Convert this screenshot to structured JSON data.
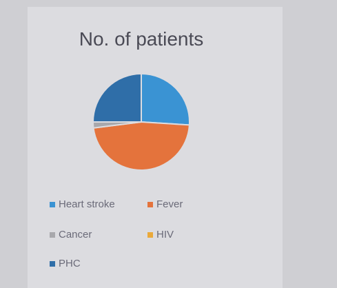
{
  "chart_data": {
    "type": "pie",
    "title": "No. of patients",
    "categories": [
      "Heart stroke",
      "Fever",
      "Cancer",
      "HIV",
      "PHC"
    ],
    "values": [
      26,
      47,
      2,
      0,
      25
    ],
    "colors": [
      "#3a93d3",
      "#e4733c",
      "#a8a8ac",
      "#eaa93a",
      "#2f6ea8"
    ],
    "legend": "bottom"
  }
}
